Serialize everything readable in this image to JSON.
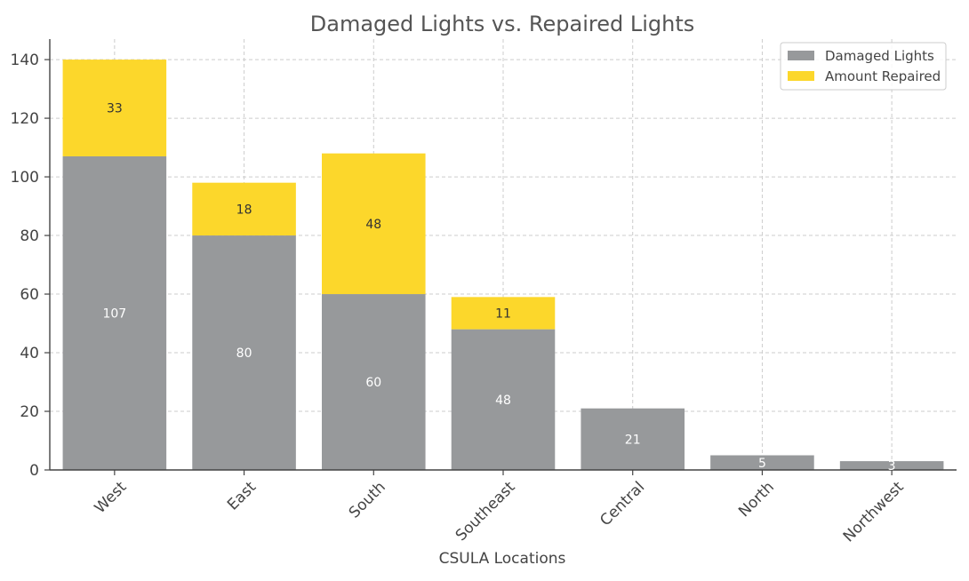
{
  "chart_data": {
    "type": "bar",
    "stacked": true,
    "title": "Damaged Lights vs. Repaired Lights",
    "xlabel": "CSULA Locations",
    "ylabel": "",
    "ylim": [
      0,
      147
    ],
    "yticks": [
      0,
      20,
      40,
      60,
      80,
      100,
      120,
      140
    ],
    "categories": [
      "West",
      "East",
      "South",
      "Southeast",
      "Central",
      "North",
      "Northwest"
    ],
    "series": [
      {
        "name": "Damaged Lights",
        "color": "#97999b",
        "label_color": "#ffffff",
        "values": [
          107,
          80,
          60,
          48,
          21,
          5,
          3
        ]
      },
      {
        "name": "Amount Repaired",
        "color": "#fcd72b",
        "label_color": "#333333",
        "values": [
          33,
          18,
          48,
          11,
          0,
          0,
          0
        ]
      }
    ],
    "grid": true,
    "legend_position": "top-right"
  }
}
